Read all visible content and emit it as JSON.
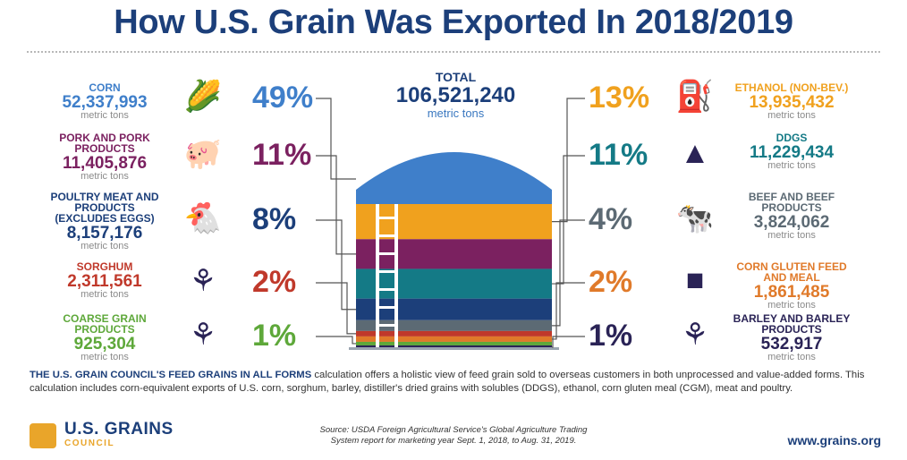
{
  "title": "How U.S. Grain Was Exported In 2018/2019",
  "chart_data": {
    "type": "stacked-bar",
    "unit": "metric tons",
    "total": {
      "label": "TOTAL",
      "value": "106,521,240",
      "unit": "metric tons"
    },
    "left": [
      {
        "label": "CORN",
        "value": "52,337,993",
        "unit": "metric tons",
        "pct": "49%",
        "share": 49,
        "color": "#3f7fca",
        "icon": "corn-icon"
      },
      {
        "label": "PORK AND PORK PRODUCTS",
        "value": "11,405,876",
        "unit": "metric tons",
        "pct": "11%",
        "share": 11,
        "color": "#7b2160",
        "icon": "pig-icon"
      },
      {
        "label": "POULTRY MEAT AND PRODUCTS (EXCLUDES EGGS)",
        "value": "8,157,176",
        "unit": "metric tons",
        "pct": "8%",
        "share": 8,
        "color": "#1c3f7a",
        "icon": "chicken-icon"
      },
      {
        "label": "SORGHUM",
        "value": "2,311,561",
        "unit": "metric tons",
        "pct": "2%",
        "share": 2,
        "color": "#c0392b",
        "icon": "sorghum-icon"
      },
      {
        "label": "COARSE GRAIN PRODUCTS",
        "value": "925,304",
        "unit": "metric tons",
        "pct": "1%",
        "share": 1,
        "color": "#5ea83a",
        "icon": "coarse-grain-icon"
      }
    ],
    "right": [
      {
        "label": "ETHANOL (NON-BEV.)",
        "value": "13,935,432",
        "unit": "metric tons",
        "pct": "13%",
        "share": 13,
        "color": "#f0a11e",
        "icon": "fuel-pump-icon"
      },
      {
        "label": "DDGS",
        "value": "11,229,434",
        "unit": "metric tons",
        "pct": "11%",
        "share": 11,
        "color": "#147a86",
        "icon": "grain-pile-icon"
      },
      {
        "label": "BEEF AND BEEF PRODUCTS",
        "value": "3,824,062",
        "unit": "metric tons",
        "pct": "4%",
        "share": 4,
        "color": "#5c6a74",
        "icon": "cow-icon"
      },
      {
        "label": "CORN GLUTEN FEED AND MEAL",
        "value": "1,861,485",
        "unit": "metric tons",
        "pct": "2%",
        "share": 2,
        "color": "#e07a2a",
        "icon": "feed-bag-icon"
      },
      {
        "label": "BARLEY AND BARLEY PRODUCTS",
        "value": "532,917",
        "unit": "metric tons",
        "pct": "1%",
        "share": 1,
        "color": "#2a2356",
        "icon": "barley-icon"
      }
    ]
  },
  "note": {
    "strong": "THE U.S. GRAIN COUNCIL'S FEED GRAINS IN ALL FORMS",
    "text": " calculation offers a holistic view of feed grain sold to overseas customers in both unprocessed and value-added forms. This calculation includes corn-equivalent exports of U.S. corn, sorghum, barley, distiller's dried grains with solubles (DDGS), ethanol, corn gluten meal (CGM), meat and poultry."
  },
  "source_line1": "Source: USDA Foreign Agricultural Service's Global Agriculture Trading",
  "source_line2": "System report for marketing year Sept. 1, 2018, to Aug. 31, 2019.",
  "logo": {
    "name": "U.S. GRAINS",
    "sub": "COUNCIL"
  },
  "site": "www.grains.org"
}
